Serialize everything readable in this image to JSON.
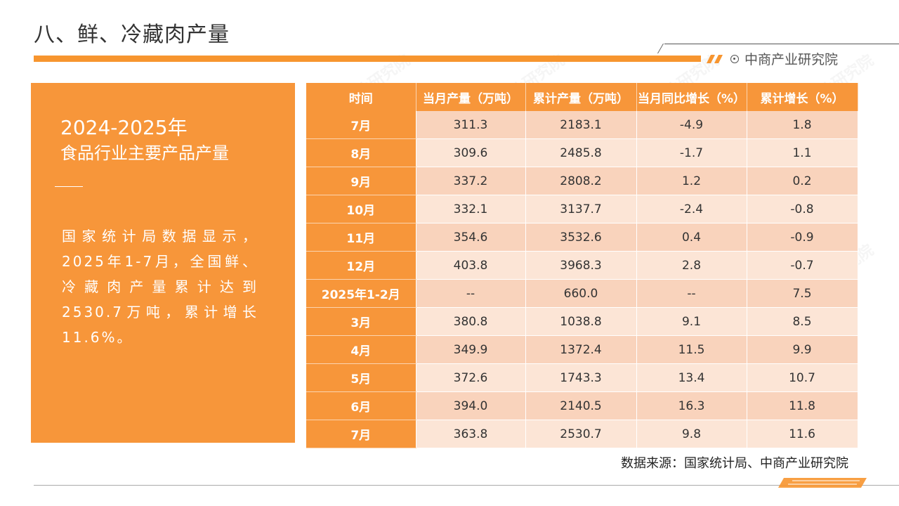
{
  "header": {
    "title": "八、鲜、冷藏肉产量",
    "brand": "中商产业研究院"
  },
  "panel": {
    "year_range": "2024-2025年",
    "subtitle": "食品行业主要产品产量",
    "body": "国家统计局数据显示，2025年1-7月，全国鲜、冷藏肉产量累计达到2530.7万吨，累计增长11.6%。"
  },
  "table": {
    "headers": [
      "时间",
      "当月产量（万吨）",
      "累计产量（万吨）",
      "当月同比增长（%）",
      "累计增长（%）"
    ],
    "rows": [
      [
        "7月",
        "311.3",
        "2183.1",
        "-4.9",
        "1.8"
      ],
      [
        "8月",
        "309.6",
        "2485.8",
        "-1.7",
        "1.1"
      ],
      [
        "9月",
        "337.2",
        "2808.2",
        "1.2",
        "0.2"
      ],
      [
        "10月",
        "332.1",
        "3137.7",
        "-2.4",
        "-0.8"
      ],
      [
        "11月",
        "354.6",
        "3532.6",
        "0.4",
        "-0.9"
      ],
      [
        "12月",
        "403.8",
        "3968.3",
        "2.8",
        "-0.7"
      ],
      [
        "2025年1-2月",
        "--",
        "660.0",
        "--",
        "7.5"
      ],
      [
        "3月",
        "380.8",
        "1038.8",
        "9.1",
        "8.5"
      ],
      [
        "4月",
        "349.9",
        "1372.4",
        "11.5",
        "9.9"
      ],
      [
        "5月",
        "372.6",
        "1743.3",
        "13.4",
        "10.7"
      ],
      [
        "6月",
        "394.0",
        "2140.5",
        "16.3",
        "11.8"
      ],
      [
        "7月",
        "363.8",
        "2530.7",
        "9.8",
        "11.6"
      ]
    ]
  },
  "footer": {
    "source": "数据来源：国家统计局、中商产业研究院"
  },
  "colors": {
    "accent": "#f7963a",
    "row_dark": "#f9d3bc",
    "row_light": "#fce5d6"
  },
  "watermark": "中商产业研究院"
}
